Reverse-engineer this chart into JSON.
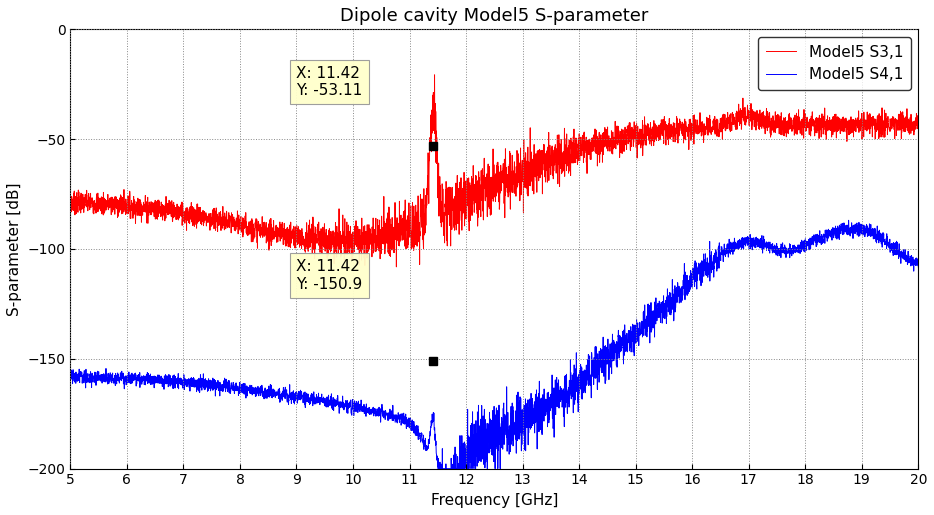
{
  "title": "Dipole cavity Model5 S-parameter",
  "xlabel": "Frequency [GHz]",
  "ylabel": "S-parameter [dB]",
  "xlim": [
    5,
    20
  ],
  "ylim": [
    -200,
    0
  ],
  "xticks": [
    5,
    6,
    7,
    8,
    9,
    10,
    11,
    12,
    13,
    14,
    15,
    16,
    17,
    18,
    19,
    20
  ],
  "yticks": [
    0,
    -50,
    -100,
    -150,
    -200
  ],
  "legend": [
    "Model5 S3,1",
    "Model5 S4,1"
  ],
  "line_colors": [
    "#ff0000",
    "#0000ff"
  ],
  "marker1_x": 11.42,
  "marker1_y": -53.11,
  "marker2_x": 11.42,
  "marker2_y": -150.9,
  "annotation1": "X: 11.42\nY: -53.11",
  "annotation2": "X: 11.42\nY: -150.9",
  "background_color": "#ffffff",
  "grid_color": "#888888",
  "title_fontsize": 13,
  "axis_fontsize": 11,
  "tick_fontsize": 10,
  "legend_fontsize": 11
}
